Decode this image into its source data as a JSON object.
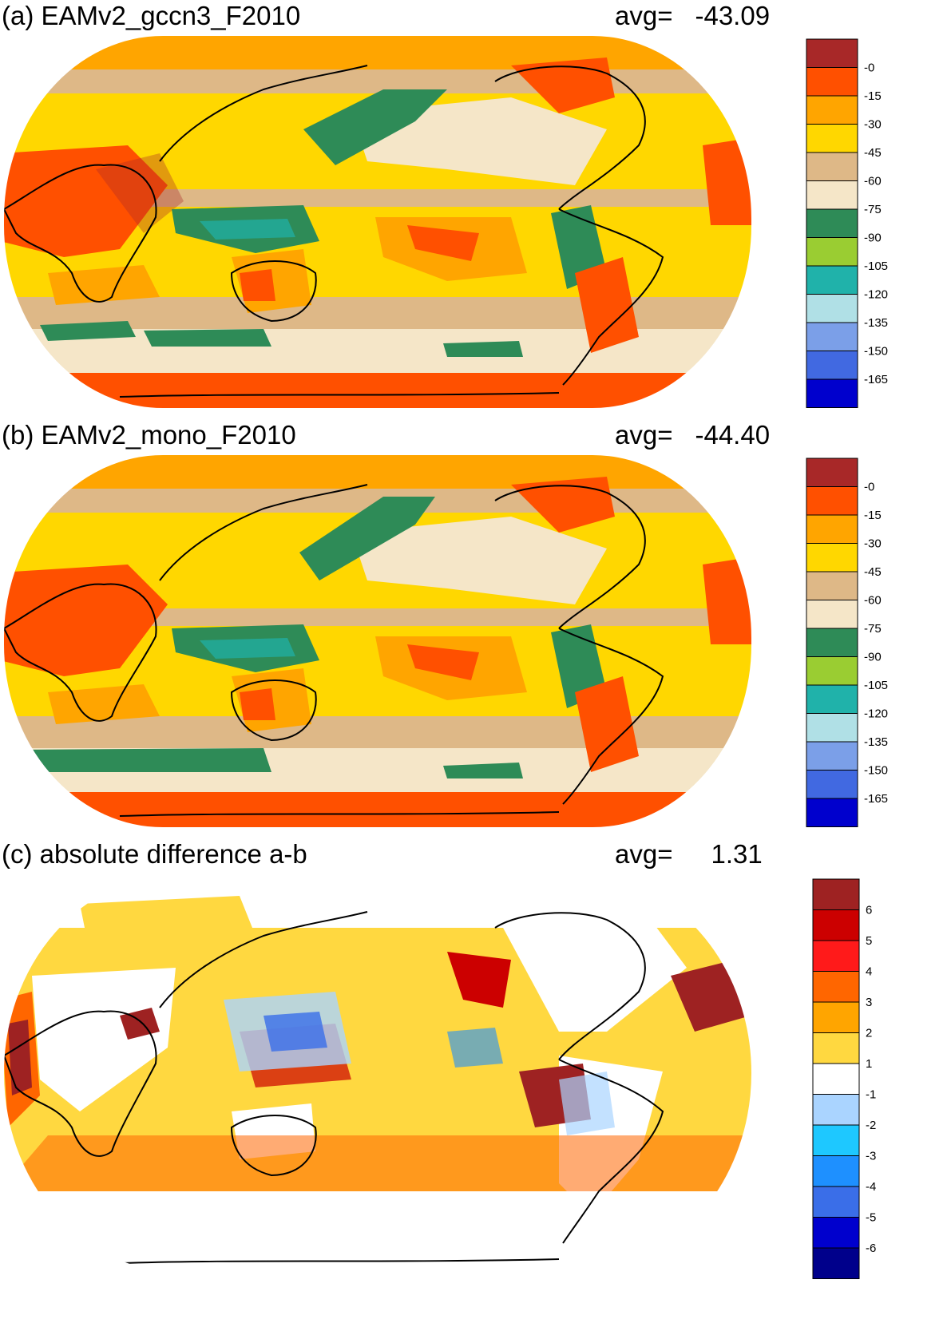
{
  "panels": [
    {
      "title": "(a) EAMv2_gccn3_F2010",
      "avg_label": "avg=",
      "avg_value": "-43.09",
      "colorbar": {
        "labels": [
          "-0",
          "-15",
          "-30",
          "-45",
          "-60",
          "-75",
          "-90",
          "-105",
          "-120",
          "-135",
          "-150",
          "-165"
        ],
        "colors": [
          "#a82828",
          "#ff5000",
          "#ffa500",
          "#ffd700",
          "#deb887",
          "#f5e6c8",
          "#2e8b57",
          "#9acd32",
          "#20b2aa",
          "#b0e0e6",
          "#7b9fe8",
          "#4169e1",
          "#0000cd"
        ]
      }
    },
    {
      "title": "(b) EAMv2_mono_F2010",
      "avg_label": "avg=",
      "avg_value": "-44.40",
      "colorbar": {
        "labels": [
          "-0",
          "-15",
          "-30",
          "-45",
          "-60",
          "-75",
          "-90",
          "-105",
          "-120",
          "-135",
          "-150",
          "-165"
        ],
        "colors": [
          "#a82828",
          "#ff5000",
          "#ffa500",
          "#ffd700",
          "#deb887",
          "#f5e6c8",
          "#2e8b57",
          "#9acd32",
          "#20b2aa",
          "#b0e0e6",
          "#7b9fe8",
          "#4169e1",
          "#0000cd"
        ]
      }
    },
    {
      "title": "(c) absolute difference a-b",
      "avg_label": "avg=",
      "avg_value": "1.31",
      "colorbar": {
        "labels": [
          "6",
          "5",
          "4",
          "3",
          "2",
          "1",
          "-1",
          "-2",
          "-3",
          "-4",
          "-5",
          "-6"
        ],
        "colors": [
          "#9e2222",
          "#cc0000",
          "#ff1a1a",
          "#ff6600",
          "#ffa500",
          "#ffd840",
          "#ffffff",
          "#aad4ff",
          "#1ec8ff",
          "#1e90ff",
          "#3a6ee8",
          "#0000cd",
          "#00008b"
        ]
      }
    }
  ]
}
